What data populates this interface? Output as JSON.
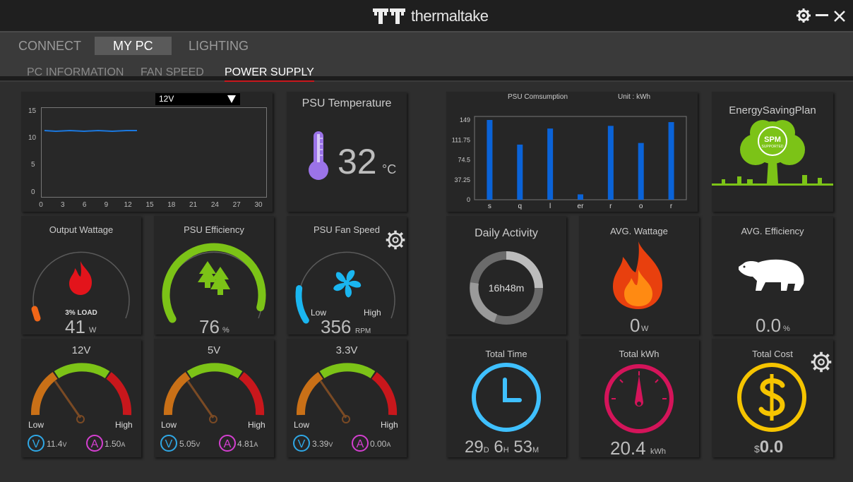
{
  "app": {
    "brand": "thermaltake"
  },
  "nav": {
    "tabs": [
      {
        "label": "CONNECT"
      },
      {
        "label": "MY PC"
      },
      {
        "label": "LIGHTING"
      }
    ],
    "subtabs": [
      {
        "label": "PC INFORMATION"
      },
      {
        "label": "FAN SPEED"
      },
      {
        "label": "POWER SUPPLY"
      }
    ]
  },
  "voltage_chart": {
    "selected": "12V",
    "yticks": [
      "15",
      "10",
      "5",
      "0"
    ],
    "xticks": [
      "0",
      "3",
      "6",
      "9",
      "12",
      "15",
      "18",
      "21",
      "24",
      "27",
      "30"
    ]
  },
  "psu_temp": {
    "title": "PSU Temperature",
    "value": "32",
    "unit": "°C"
  },
  "output_wattage": {
    "title": "Output Wattage",
    "load": "3% LOAD",
    "value": "41",
    "unit": "W"
  },
  "psu_efficiency": {
    "title": "PSU Efficiency",
    "value": "76",
    "unit": "%"
  },
  "psu_fan": {
    "title": "PSU Fan Speed",
    "low": "Low",
    "high": "High",
    "value": "356",
    "unit": "RPM"
  },
  "rails": [
    {
      "title": "12V",
      "low": "Low",
      "high": "High",
      "volt": "11.4",
      "vunit": "V",
      "amp": "1.50",
      "aunit": "A"
    },
    {
      "title": "5V",
      "low": "Low",
      "high": "High",
      "volt": "5.05",
      "vunit": "V",
      "amp": "4.81",
      "aunit": "A"
    },
    {
      "title": "3.3V",
      "low": "Low",
      "high": "High",
      "volt": "3.39",
      "vunit": "V",
      "amp": "0.00",
      "aunit": "A"
    }
  ],
  "consumption": {
    "title": "PSU Comsumption",
    "unit_label": "Unit : kWh"
  },
  "chart_data": {
    "type": "bar",
    "title": "PSU Comsumption",
    "unit": "Unit : kWh",
    "categories": [
      "s",
      "q",
      "l",
      "er",
      "r",
      "o",
      "r"
    ],
    "values": [
      149,
      103,
      133,
      10,
      138,
      106,
      145
    ],
    "yticks": [
      "149",
      "111.75",
      "74.5",
      "37.25",
      "0"
    ],
    "ylim": [
      0,
      149
    ],
    "color": "#0a63d8"
  },
  "energy_plan": {
    "title": "EnergySavingPlan",
    "badge_line1": "SPM",
    "badge_line2": "SUPPORTED"
  },
  "daily_activity": {
    "title": "Daily Activity",
    "value": "16h48m"
  },
  "avg_wattage": {
    "title": "AVG. Wattage",
    "value": "0",
    "unit": "W"
  },
  "avg_efficiency": {
    "title": "AVG. Efficiency",
    "value": "0.0",
    "unit": "%"
  },
  "total_time": {
    "title": "Total Time",
    "d": "29",
    "d_unit": "D",
    "h": "6",
    "h_unit": "H",
    "m": "53",
    "m_unit": "M"
  },
  "total_kwh": {
    "title": "Total kWh",
    "value": "20.4",
    "unit": "kWh"
  },
  "total_cost": {
    "title": "Total Cost",
    "currency": "$",
    "value": "0.0"
  },
  "colors": {
    "accent_red": "#c8171c",
    "bar_blue": "#0a63d8",
    "gauge_green": "#7cc317",
    "fan_blue": "#1ab6f0",
    "volt_blue": "#2fa8e6",
    "amp_pink": "#d43fd0"
  }
}
